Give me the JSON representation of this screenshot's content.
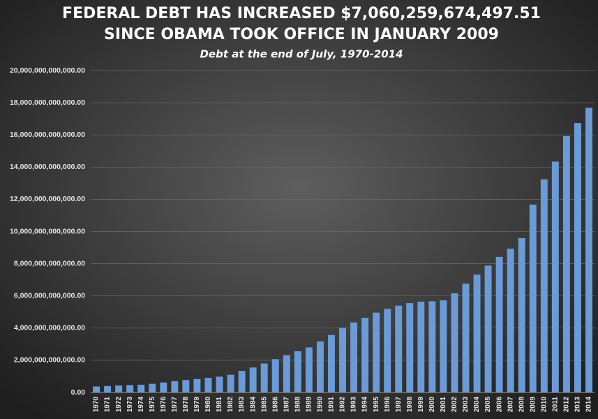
{
  "chart_data": {
    "type": "bar",
    "title": [
      "FEDERAL DEBT HAS INCREASED $7,060,259,674,497.51",
      "SINCE OBAMA TOOK OFFICE IN JANUARY 2009"
    ],
    "subtitle": "Debt at the end of July, 1970-2014",
    "categories": [
      "1970",
      "1971",
      "1972",
      "1973",
      "1974",
      "1975",
      "1976",
      "1977",
      "1978",
      "1979",
      "1980",
      "1981",
      "1982",
      "1983",
      "1984",
      "1985",
      "1986",
      "1987",
      "1988",
      "1989",
      "1990",
      "1991",
      "1992",
      "1993",
      "1994",
      "1995",
      "1996",
      "1997",
      "1998",
      "1999",
      "2000",
      "2001",
      "2002",
      "2003",
      "2004",
      "2005",
      "2006",
      "2007",
      "2008",
      "2009",
      "2010",
      "2011",
      "2012",
      "2013",
      "2014"
    ],
    "values": [
      370000000000,
      400000000000,
      430000000000,
      460000000000,
      480000000000,
      540000000000,
      620000000000,
      700000000000,
      770000000000,
      830000000000,
      910000000000,
      980000000000,
      1100000000000,
      1340000000000,
      1550000000000,
      1800000000000,
      2070000000000,
      2320000000000,
      2560000000000,
      2800000000000,
      3170000000000,
      3570000000000,
      4020000000000,
      4350000000000,
      4640000000000,
      4960000000000,
      5190000000000,
      5390000000000,
      5550000000000,
      5640000000000,
      5670000000000,
      5720000000000,
      6160000000000,
      6760000000000,
      7320000000000,
      7880000000000,
      8420000000000,
      8930000000000,
      9590000000000,
      11670000000000,
      13240000000000,
      14340000000000,
      15930000000000,
      16740000000000,
      17690000000000
    ],
    "color": "#6a9bd6",
    "ylim": [
      0,
      20000000000000
    ],
    "yticks": [
      {
        "value": 0,
        "label": "0.00"
      },
      {
        "value": 2000000000000,
        "label": "2,000,000,000,000.00"
      },
      {
        "value": 4000000000000,
        "label": "4,000,000,000,000.00"
      },
      {
        "value": 6000000000000,
        "label": "6,000,000,000,000.00"
      },
      {
        "value": 8000000000000,
        "label": "8,000,000,000,000.00"
      },
      {
        "value": 10000000000000,
        "label": "10,000,000,000,000.00"
      },
      {
        "value": 12000000000000,
        "label": "12,000,000,000,000.00"
      },
      {
        "value": 14000000000000,
        "label": "14,000,000,000,000.00"
      },
      {
        "value": 16000000000000,
        "label": "16,000,000,000,000.00"
      },
      {
        "value": 18000000000000,
        "label": "18,000,000,000,000.00"
      },
      {
        "value": 20000000000000,
        "label": "20,000,000,000,000.00"
      }
    ],
    "grid": true
  }
}
